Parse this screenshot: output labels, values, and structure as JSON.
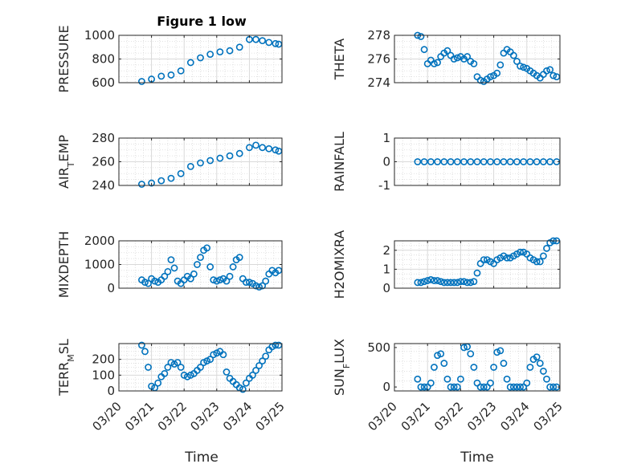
{
  "figure": {
    "title": "Figure 1 low",
    "xlabel": "Time",
    "date_ticks": [
      "03/20",
      "03/21",
      "03/22",
      "03/23",
      "03/24",
      "03/25"
    ],
    "marker_color": "#0072BD",
    "grid_color": "#d9d9d9"
  },
  "chart_data": [
    {
      "type": "scatter",
      "ylabel": "PRESSURE",
      "ylim": [
        600,
        1000
      ],
      "yticks": [
        "600",
        "800",
        "1000"
      ],
      "xlim": [
        "03/20",
        "03/25"
      ],
      "series": [
        {
          "x": [
            20.7,
            21.0,
            21.3,
            21.6,
            21.9,
            22.2,
            22.5,
            22.8,
            23.1,
            23.4,
            23.7,
            24.0,
            24.2,
            24.4,
            24.6,
            24.8,
            24.9
          ],
          "y": [
            610,
            630,
            655,
            665,
            700,
            770,
            810,
            840,
            860,
            870,
            900,
            965,
            965,
            955,
            940,
            930,
            925
          ]
        }
      ]
    },
    {
      "type": "scatter",
      "ylabel": "THETA",
      "ylim": [
        274,
        278
      ],
      "yticks": [
        "274",
        "276",
        "278"
      ],
      "xlim": [
        "03/20",
        "03/25"
      ],
      "series": [
        {
          "x": [
            20.7,
            20.8,
            20.9,
            21.0,
            21.1,
            21.2,
            21.3,
            21.4,
            21.5,
            21.6,
            21.7,
            21.8,
            21.9,
            22.0,
            22.1,
            22.2,
            22.3,
            22.4,
            22.5,
            22.6,
            22.7,
            22.8,
            22.9,
            23.0,
            23.1,
            23.2,
            23.3,
            23.4,
            23.5,
            23.6,
            23.7,
            23.8,
            23.9,
            24.0,
            24.1,
            24.2,
            24.3,
            24.4,
            24.5,
            24.6,
            24.7,
            24.8,
            24.9
          ],
          "y": [
            278,
            277.9,
            276.8,
            275.6,
            275.9,
            275.6,
            275.7,
            276.2,
            276.5,
            276.7,
            276.3,
            276.0,
            276.1,
            276.2,
            276.0,
            276.2,
            275.8,
            275.6,
            274.5,
            274.2,
            274.1,
            274.3,
            274.5,
            274.6,
            274.8,
            275.5,
            276.5,
            276.8,
            276.6,
            276.3,
            275.8,
            275.4,
            275.3,
            275.2,
            275.0,
            274.8,
            274.6,
            274.4,
            274.7,
            275.0,
            275.1,
            274.6,
            274.5
          ]
        }
      ]
    },
    {
      "type": "scatter",
      "ylabel_main": "AIR",
      "ylabel_sub": "T",
      "ylabel_rest": "EMP",
      "ylim": [
        240,
        280
      ],
      "yticks": [
        "240",
        "260",
        "280"
      ],
      "xlim": [
        "03/20",
        "03/25"
      ],
      "series": [
        {
          "x": [
            20.7,
            21.0,
            21.3,
            21.6,
            21.9,
            22.2,
            22.5,
            22.8,
            23.1,
            23.4,
            23.7,
            24.0,
            24.2,
            24.4,
            24.6,
            24.8,
            24.9
          ],
          "y": [
            241,
            242,
            244,
            246,
            250,
            256,
            259,
            261,
            263,
            265,
            267,
            272,
            274,
            272,
            271,
            270,
            269
          ]
        }
      ]
    },
    {
      "type": "scatter",
      "ylabel": "RAINFALL",
      "ylim": [
        -1,
        1
      ],
      "yticks": [
        "-1",
        "0",
        "1"
      ],
      "xlim": [
        "03/20",
        "03/25"
      ],
      "series": [
        {
          "x": [
            20.7,
            20.9,
            21.1,
            21.3,
            21.5,
            21.7,
            21.9,
            22.1,
            22.3,
            22.5,
            22.7,
            22.9,
            23.1,
            23.3,
            23.5,
            23.7,
            23.9,
            24.1,
            24.3,
            24.5,
            24.7,
            24.9
          ],
          "y": [
            0,
            0,
            0,
            0,
            0,
            0,
            0,
            0,
            0,
            0,
            0,
            0,
            0,
            0,
            0,
            0,
            0,
            0,
            0,
            0,
            0,
            0
          ]
        }
      ]
    },
    {
      "type": "scatter",
      "ylabel": "MIXDEPTH",
      "ylim": [
        0,
        2000
      ],
      "yticks": [
        "0",
        "1000",
        "2000"
      ],
      "xlim": [
        "03/20",
        "03/25"
      ],
      "series": [
        {
          "x": [
            20.7,
            20.8,
            20.9,
            21.0,
            21.1,
            21.2,
            21.3,
            21.4,
            21.5,
            21.6,
            21.7,
            21.8,
            21.9,
            22.0,
            22.1,
            22.2,
            22.3,
            22.4,
            22.5,
            22.6,
            22.7,
            22.8,
            22.9,
            23.0,
            23.1,
            23.2,
            23.3,
            23.4,
            23.5,
            23.6,
            23.7,
            23.8,
            23.9,
            24.0,
            24.1,
            24.2,
            24.3,
            24.4,
            24.5,
            24.6,
            24.7,
            24.8,
            24.9
          ],
          "y": [
            350,
            250,
            200,
            400,
            300,
            250,
            350,
            500,
            700,
            1200,
            850,
            300,
            200,
            350,
            500,
            400,
            600,
            1000,
            1300,
            1600,
            1700,
            900,
            350,
            300,
            350,
            400,
            300,
            500,
            900,
            1200,
            1300,
            400,
            250,
            250,
            200,
            100,
            50,
            100,
            300,
            600,
            750,
            650,
            750
          ]
        }
      ]
    },
    {
      "type": "scatter",
      "ylabel": "H2OMIXRA",
      "ylim": [
        0,
        2.5
      ],
      "yticks": [
        "0",
        "1",
        "2"
      ],
      "xlim": [
        "03/20",
        "03/25"
      ],
      "series": [
        {
          "x": [
            20.7,
            20.8,
            20.9,
            21.0,
            21.1,
            21.2,
            21.3,
            21.4,
            21.5,
            21.6,
            21.7,
            21.8,
            21.9,
            22.0,
            22.1,
            22.2,
            22.3,
            22.4,
            22.5,
            22.6,
            22.7,
            22.8,
            22.9,
            23.0,
            23.1,
            23.2,
            23.3,
            23.4,
            23.5,
            23.6,
            23.7,
            23.8,
            23.9,
            24.0,
            24.1,
            24.2,
            24.3,
            24.4,
            24.5,
            24.6,
            24.7,
            24.8,
            24.9
          ],
          "y": [
            0.3,
            0.3,
            0.35,
            0.4,
            0.45,
            0.4,
            0.4,
            0.35,
            0.3,
            0.3,
            0.3,
            0.3,
            0.3,
            0.35,
            0.35,
            0.3,
            0.3,
            0.35,
            0.8,
            1.3,
            1.5,
            1.5,
            1.4,
            1.3,
            1.5,
            1.6,
            1.7,
            1.6,
            1.6,
            1.7,
            1.8,
            1.9,
            1.9,
            1.8,
            1.6,
            1.5,
            1.4,
            1.4,
            1.7,
            2.1,
            2.4,
            2.5,
            2.5
          ]
        }
      ]
    },
    {
      "type": "scatter",
      "ylabel_main": "TERR",
      "ylabel_sub": "M",
      "ylabel_rest": "SL",
      "ylim": [
        0,
        300
      ],
      "yticks": [
        "0",
        "100",
        "200"
      ],
      "xlim": [
        "03/20",
        "03/25"
      ],
      "series": [
        {
          "x": [
            20.7,
            20.8,
            20.9,
            21.0,
            21.1,
            21.2,
            21.3,
            21.4,
            21.5,
            21.6,
            21.7,
            21.8,
            21.9,
            22.0,
            22.1,
            22.2,
            22.3,
            22.4,
            22.5,
            22.6,
            22.7,
            22.8,
            22.9,
            23.0,
            23.1,
            23.2,
            23.3,
            23.4,
            23.5,
            23.6,
            23.7,
            23.8,
            23.9,
            24.0,
            24.1,
            24.2,
            24.3,
            24.4,
            24.5,
            24.6,
            24.7,
            24.8,
            24.9
          ],
          "y": [
            290,
            250,
            150,
            30,
            20,
            50,
            90,
            110,
            150,
            180,
            170,
            180,
            150,
            100,
            90,
            100,
            110,
            130,
            150,
            180,
            190,
            200,
            230,
            240,
            250,
            230,
            120,
            80,
            60,
            40,
            20,
            10,
            50,
            80,
            100,
            130,
            160,
            190,
            220,
            260,
            280,
            290,
            290
          ]
        }
      ]
    },
    {
      "type": "scatter",
      "ylabel_main": "SUN",
      "ylabel_sub": "F",
      "ylabel_rest": "LUX",
      "ylim": [
        -50,
        550
      ],
      "yticks": [
        "0",
        "500"
      ],
      "xlim": [
        "03/20",
        "03/25"
      ],
      "series": [
        {
          "x": [
            20.7,
            20.8,
            20.9,
            21.0,
            21.1,
            21.2,
            21.3,
            21.4,
            21.5,
            21.6,
            21.7,
            21.8,
            21.9,
            22.0,
            22.1,
            22.2,
            22.3,
            22.4,
            22.5,
            22.6,
            22.7,
            22.8,
            22.9,
            23.0,
            23.1,
            23.2,
            23.3,
            23.4,
            23.5,
            23.6,
            23.7,
            23.8,
            23.9,
            24.0,
            24.1,
            24.2,
            24.3,
            24.4,
            24.5,
            24.6,
            24.7,
            24.8,
            24.9
          ],
          "y": [
            100,
            0,
            0,
            0,
            50,
            250,
            400,
            420,
            300,
            100,
            0,
            0,
            0,
            100,
            500,
            510,
            420,
            250,
            50,
            0,
            0,
            0,
            50,
            250,
            440,
            460,
            300,
            100,
            0,
            0,
            0,
            0,
            0,
            50,
            250,
            350,
            380,
            300,
            200,
            100,
            0,
            0,
            0
          ]
        }
      ]
    }
  ]
}
